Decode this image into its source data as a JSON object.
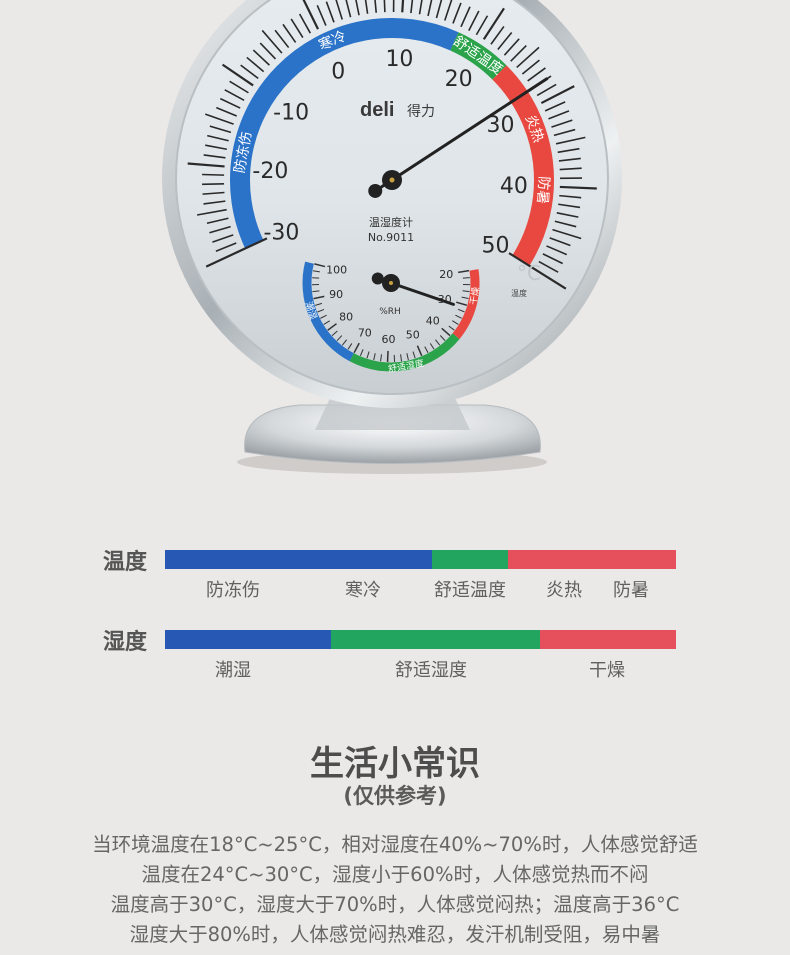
{
  "gauge": {
    "brand": "deli",
    "brand_cn": "得力",
    "model_label": "温湿度计",
    "model_no": "No.9011",
    "unit": "°C",
    "unit_label": "温度",
    "temperature": {
      "min": -30,
      "max": 50,
      "tick_labels": [
        "-30",
        "-20",
        "-10",
        "0",
        "10",
        "20",
        "30",
        "40",
        "50"
      ],
      "needle_value": 28,
      "bands": [
        {
          "from": -30,
          "to": 17,
          "color": "#2a73c9"
        },
        {
          "from": 17,
          "to": 24,
          "color": "#2aa34a"
        },
        {
          "from": 24,
          "to": 50,
          "color": "#e8483f"
        }
      ],
      "zone_labels": [
        {
          "label": "防冻伤",
          "at": -18
        },
        {
          "label": "寒冷",
          "at": 1
        },
        {
          "label": "舒适温度",
          "at": 20.5
        },
        {
          "label": "炎热",
          "at": 32.5
        },
        {
          "label": "防暑",
          "at": 40.5
        }
      ]
    },
    "humidity": {
      "unit": "%RH",
      "min": 20,
      "max": 100,
      "tick_labels": [
        "100",
        "90",
        "80",
        "70",
        "60",
        "50",
        "40",
        "30",
        "20"
      ],
      "needle_value": 31,
      "bands": [
        {
          "from": 100,
          "to": 70,
          "color": "#2a73c9"
        },
        {
          "from": 70,
          "to": 39,
          "color": "#2aa34a"
        },
        {
          "from": 39,
          "to": 20,
          "color": "#e8483f"
        }
      ],
      "zone_labels": [
        {
          "label": "潮湿",
          "at": 87
        },
        {
          "label": "舒适湿度",
          "at": 55
        },
        {
          "label": "干燥",
          "at": 27
        }
      ]
    }
  },
  "legend": {
    "temperature": {
      "label": "温度",
      "segments": [
        {
          "color": "#2758b3",
          "share": 52.3
        },
        {
          "color": "#22a55f",
          "share": 14.9
        },
        {
          "color": "#e5505c",
          "share": 32.8
        }
      ],
      "zones": [
        "防冻伤",
        "寒冷",
        "舒适温度",
        "炎热",
        "防暑"
      ]
    },
    "humidity": {
      "label": "湿度",
      "segments": [
        {
          "color": "#2758b3",
          "share": 32.5
        },
        {
          "color": "#22a55f",
          "share": 40.9
        },
        {
          "color": "#e5505c",
          "share": 26.6
        }
      ],
      "zones": [
        "潮湿",
        "舒适湿度",
        "干燥"
      ]
    }
  },
  "tips": {
    "title": "生活小常识",
    "subtitle": "(仅供参考)",
    "lines": [
      "当环境温度在18°C~25°C，相对湿度在40%~70%时，人体感觉舒适",
      "温度在24°C~30°C，湿度小于60%时，人体感觉热而不闷",
      "温度高于30°C，湿度大于70%时，人体感觉闷热；温度高于36°C",
      "湿度大于80%时，人体感觉闷热难忍，发汗机制受阻，易中暑"
    ]
  }
}
